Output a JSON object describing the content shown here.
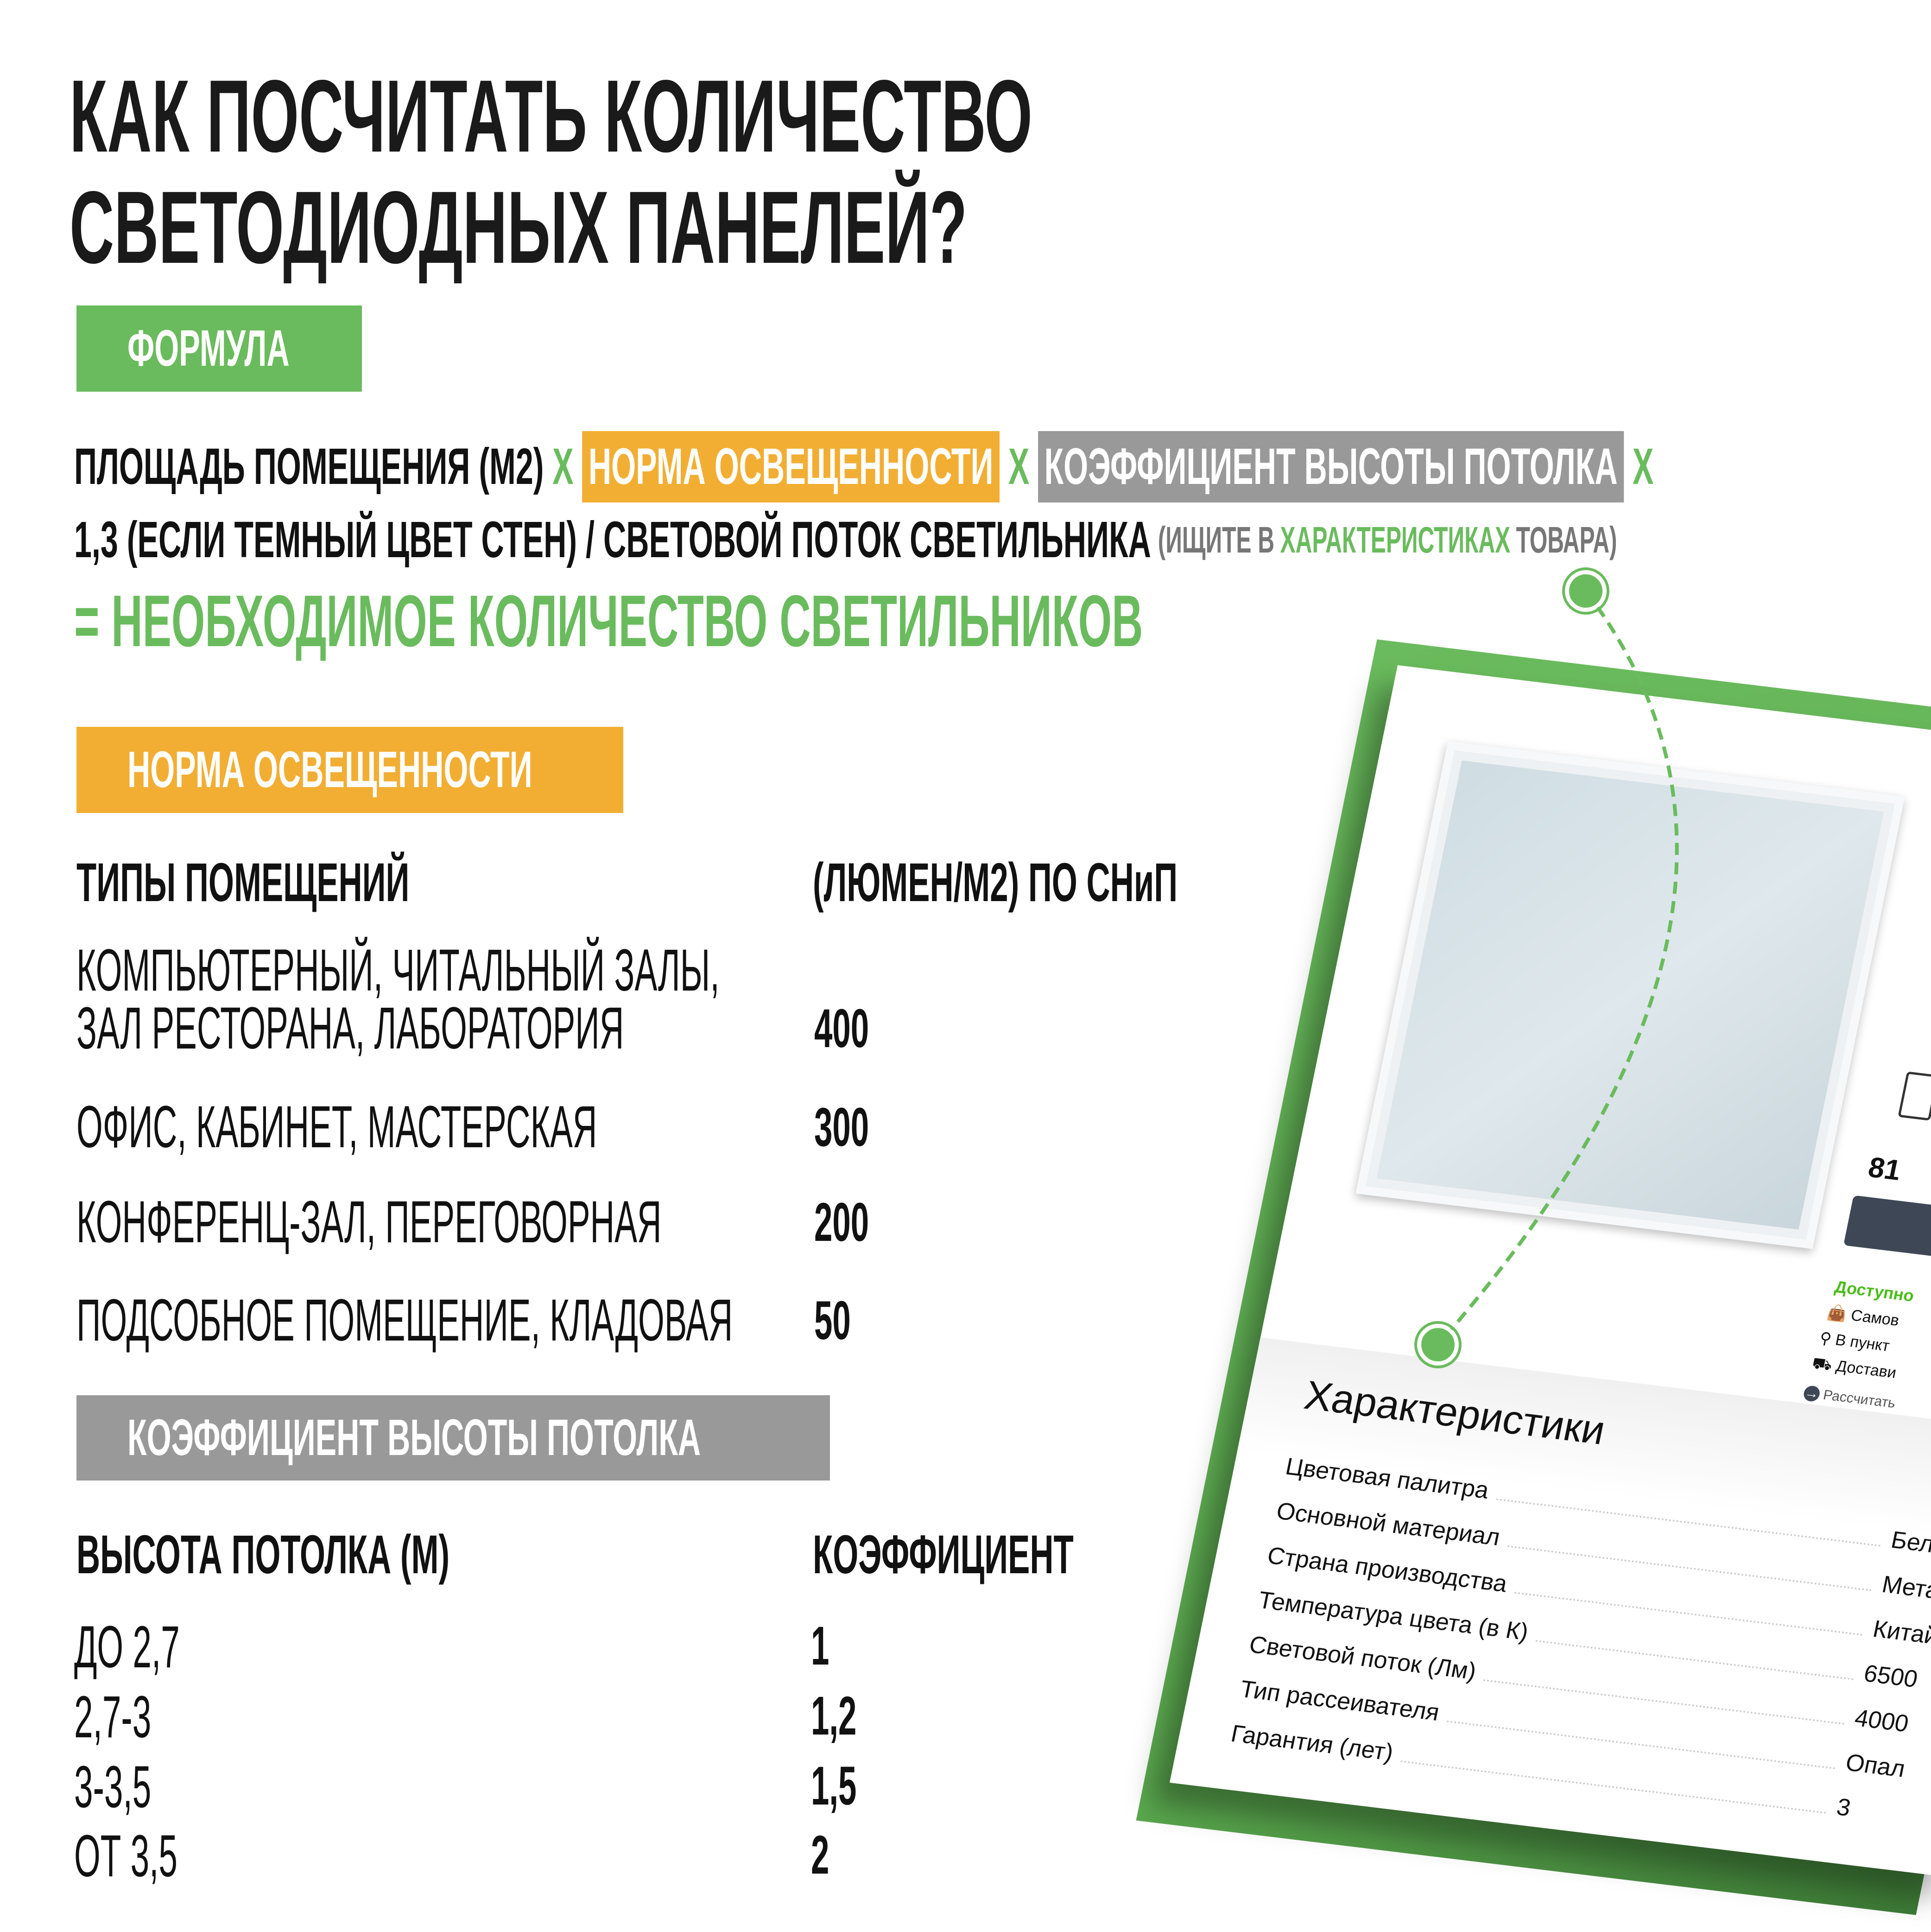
{
  "title": {
    "line1": "КАК ПОСЧИТАТЬ КОЛИЧЕСТВО",
    "line2": "СВЕТОДИОДНЫХ ПАНЕЛЕЙ?"
  },
  "colors": {
    "green": "#6abb5d",
    "orange": "#f2ae33",
    "gray": "#999999"
  },
  "formula": {
    "tag": "ФОРМУЛА",
    "area": "ПЛОЩАДЬ ПОМЕЩЕНИЯ (М2)",
    "x": "Х",
    "norm": "НОРМА ОСВЕЩЕННОСТИ",
    "coef": "КОЭФФИЦИЕНТ ВЫСОТЫ ПОТОЛКА",
    "line2": "1,3 (ЕСЛИ ТЕМНЫЙ ЦВЕТ СТЕН) / СВЕТОВОЙ ПОТОК СВЕТИЛЬНИКА",
    "hint_a": "(ИЩИТЕ В",
    "hint_b": "ХАРАКТЕРИСТИКАХ",
    "hint_c": "ТОВАРА)",
    "result": "= НЕОБХОДИМОЕ КОЛИЧЕСТВО СВЕТИЛЬНИКОВ"
  },
  "norm": {
    "tag": "НОРМА ОСВЕЩЕННОСТИ",
    "col1": "ТИПЫ ПОМЕЩЕНИЙ",
    "col2": "(ЛЮМЕН/М2) ПО СНиП",
    "rows": [
      {
        "l1": "КОМПЬЮТЕРНЫЙ, ЧИТАЛЬНЫЙ ЗАЛЫ,",
        "l2": "ЗАЛ РЕСТОРАНА, ЛАБОРАТОРИЯ",
        "v": "400"
      },
      {
        "l1": "ОФИС, КАБИНЕТ, МАСТЕРСКАЯ",
        "v": "300"
      },
      {
        "l1": "КОНФЕРЕНЦ-ЗАЛ, ПЕРЕГОВОРНАЯ",
        "v": "200"
      },
      {
        "l1": "ПОДСОБНОЕ ПОМЕЩЕНИЕ, КЛАДОВАЯ",
        "v": "50"
      }
    ]
  },
  "coef": {
    "tag": "КОЭФФИЦИЕНТ ВЫСОТЫ ПОТОЛКА",
    "col1": "ВЫСОТА ПОТОЛКА (М)",
    "col2": "КОЭФФИЦИЕНТ",
    "rows": [
      {
        "h": "ДО 2,7",
        "k": "1"
      },
      {
        "h": "2,7-3",
        "k": "1,2"
      },
      {
        "h": "3-3,5",
        "k": "1,5"
      },
      {
        "h": "ОТ 3,5",
        "k": "2"
      }
    ]
  },
  "card": {
    "price": "81",
    "available": "Доступно",
    "pickup": "Самов",
    "point": "В пункт",
    "delivery": "Достави",
    "calc": "Рассчитать",
    "specs_title": "Характеристики",
    "specs": [
      {
        "k": "Цветовая палитра",
        "v": "Белы"
      },
      {
        "k": "Основной материал",
        "v": "Метал"
      },
      {
        "k": "Страна производства",
        "v": "Китай"
      },
      {
        "k": "Температура цвета (в К)",
        "v": "6500"
      },
      {
        "k": "Световой поток (Лм)",
        "v": "4000"
      },
      {
        "k": "Тип рассеивателя",
        "v": "Опал"
      },
      {
        "k": "Гарантия (лет)",
        "v": "3"
      }
    ]
  }
}
